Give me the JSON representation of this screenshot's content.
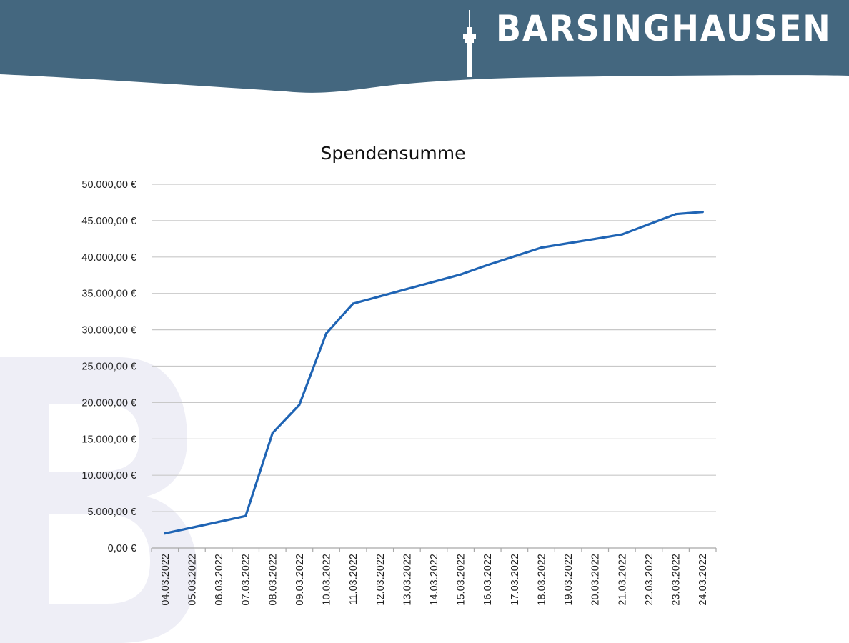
{
  "header": {
    "logo_text": "BARSINGHAUSEN",
    "band_color": "#44677f",
    "logo_icon": "tv-tower-icon"
  },
  "watermark": {
    "letter": "B",
    "color": "#eeeef6"
  },
  "chart_data": {
    "type": "line",
    "title": "Spendensumme",
    "xlabel": "",
    "ylabel": "",
    "line_color": "#1f64b4",
    "grid": true,
    "legend": "none",
    "ylim": [
      0,
      50000
    ],
    "yticks": [
      "0,00 €",
      "5.000,00 €",
      "10.000,00 €",
      "15.000,00 €",
      "20.000,00 €",
      "25.000,00 €",
      "30.000,00 €",
      "35.000,00 €",
      "40.000,00 €",
      "45.000,00 €",
      "50.000,00 €"
    ],
    "ytick_values": [
      0,
      5000,
      10000,
      15000,
      20000,
      25000,
      30000,
      35000,
      40000,
      45000,
      50000
    ],
    "categories": [
      "04.03.2022",
      "05.03.2022",
      "06.03.2022",
      "07.03.2022",
      "08.03.2022",
      "09.03.2022",
      "10.03.2022",
      "11.03.2022",
      "12.03.2022",
      "13.03.2022",
      "14.03.2022",
      "15.03.2022",
      "16.03.2022",
      "17.03.2022",
      "18.03.2022",
      "19.03.2022",
      "20.03.2022",
      "21.03.2022",
      "22.03.2022",
      "23.03.2022",
      "24.03.2022"
    ],
    "values": [
      2000,
      2800,
      3600,
      4400,
      15800,
      19700,
      29500,
      33600,
      34600,
      35600,
      36600,
      37600,
      38900,
      40100,
      41300,
      41900,
      42500,
      43100,
      44500,
      45900,
      46200
    ]
  }
}
